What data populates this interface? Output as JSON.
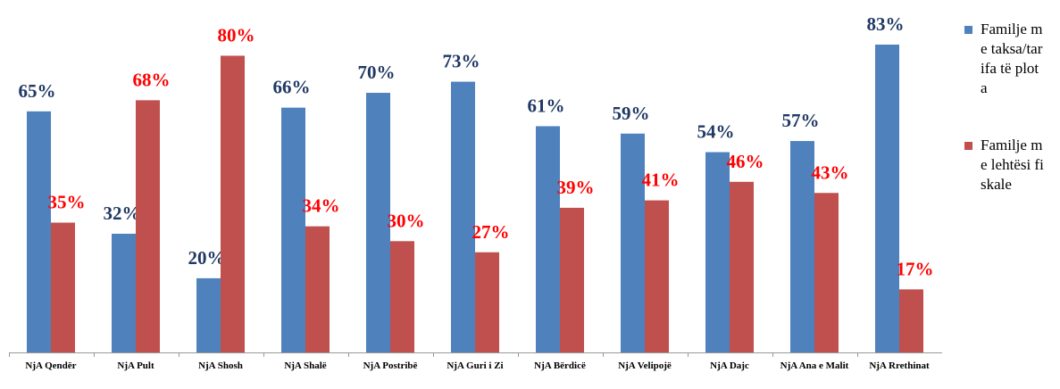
{
  "chart_data": {
    "type": "bar",
    "categories": [
      "NjA Qendër",
      "NjA Pult",
      "NjA Shosh",
      "NjA Shalë",
      "NjA Postribë",
      "NjA Guri i Zi",
      "NjA Bërdicë",
      "NjA Velipojë",
      "NjA Dajc",
      "NjA Ana e Malit",
      "NjA Rrethinat"
    ],
    "series": [
      {
        "name": "Familje me taksa/tarifa të plota",
        "color": "#4f81bd",
        "label_color": "#1f3864",
        "values": [
          65,
          32,
          20,
          66,
          70,
          73,
          61,
          59,
          54,
          57,
          83
        ],
        "value_labels": [
          "65%",
          "32%",
          "20%",
          "66%",
          "70%",
          "73%",
          "61%",
          "59%",
          "54%",
          "57%",
          "83%"
        ]
      },
      {
        "name": "Familje me lehtësi fiskale",
        "color": "#c0504d",
        "label_color": "#ff0000",
        "values": [
          35,
          68,
          80,
          34,
          30,
          27,
          39,
          41,
          46,
          43,
          17
        ],
        "value_labels": [
          "35%",
          "68%",
          "80%",
          "34%",
          "30%",
          "27%",
          "39%",
          "41%",
          "46%",
          "43%",
          "17%"
        ]
      }
    ],
    "legend": "right"
  }
}
